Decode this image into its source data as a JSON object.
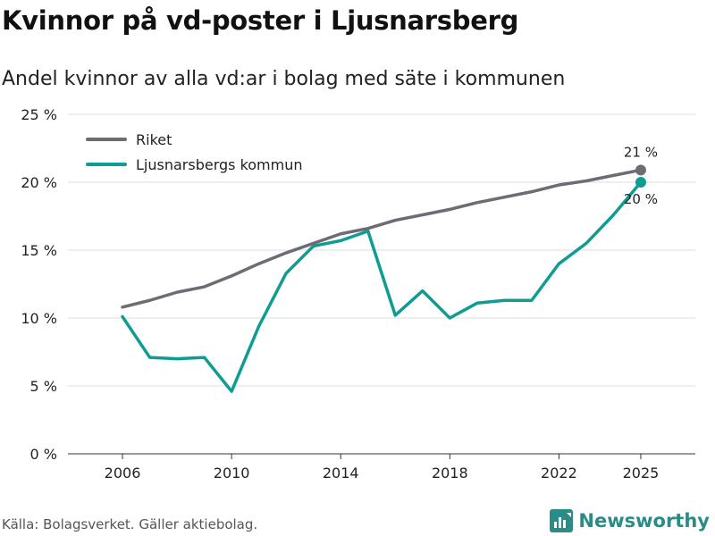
{
  "title": "Kvinnor på vd-poster i Ljusnarsberg",
  "subtitle": "Andel kvinnor av alla vd:ar i bolag med säte i kommunen",
  "source": "Källa: Bolagsverket. Gäller aktiebolag.",
  "brand": "Newsworthy",
  "colors": {
    "riket": "#6e6b75",
    "kommun": "#0f9c93",
    "grid": "#dddddd",
    "brand": "#2a8c86"
  },
  "chart_data": {
    "type": "line",
    "x": [
      2006,
      2007,
      2008,
      2009,
      2010,
      2011,
      2012,
      2013,
      2014,
      2015,
      2016,
      2017,
      2018,
      2019,
      2020,
      2021,
      2022,
      2023,
      2024,
      2025
    ],
    "xlim": [
      2004,
      2027
    ],
    "ylim": [
      0,
      25
    ],
    "xticks": [
      2006,
      2010,
      2014,
      2018,
      2022,
      2025
    ],
    "xtick_labels": [
      "2006",
      "2010",
      "2014",
      "2018",
      "2022",
      "2025"
    ],
    "yticks": [
      0,
      5,
      10,
      15,
      20,
      25
    ],
    "ytick_labels": [
      "0 %",
      "5 %",
      "10 %",
      "15 %",
      "20 %",
      "25 %"
    ],
    "grid": true,
    "legend_position": "top-left",
    "series": [
      {
        "name": "Riket",
        "color": "#6e6b75",
        "values": [
          10.8,
          11.3,
          11.9,
          12.3,
          13.1,
          14.0,
          14.8,
          15.5,
          16.2,
          16.6,
          17.2,
          17.6,
          18.0,
          18.5,
          18.9,
          19.3,
          19.8,
          20.1,
          20.5,
          20.9
        ],
        "end_label": "21 %"
      },
      {
        "name": "Ljusnarsbergs kommun",
        "color": "#0f9c93",
        "values": [
          10.1,
          7.1,
          7.0,
          7.1,
          4.6,
          9.4,
          13.3,
          15.3,
          15.7,
          16.4,
          10.2,
          12.0,
          10.0,
          11.1,
          11.3,
          11.3,
          14.0,
          15.5,
          17.6,
          20.0
        ],
        "end_label": "20 %"
      }
    ]
  }
}
